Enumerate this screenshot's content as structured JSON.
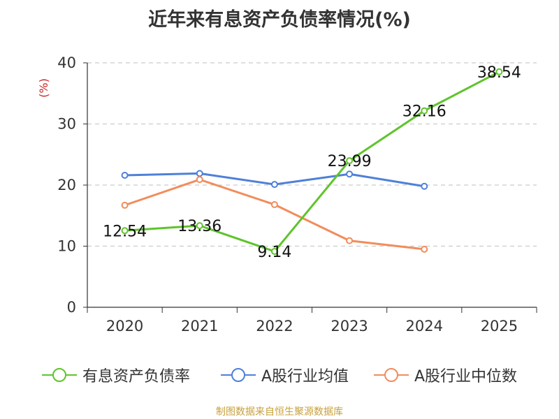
{
  "chart_data": {
    "type": "line",
    "title": "近年来有息资产负债率情况(%)",
    "ylabel": "(%)",
    "xlabel": "",
    "categories": [
      "2020",
      "2021",
      "2022",
      "2023",
      "2024",
      "2025"
    ],
    "ylim": [
      0,
      40
    ],
    "yticks": [
      0,
      10,
      20,
      30,
      40
    ],
    "grid": true,
    "legend_position": "bottom",
    "series": [
      {
        "name": "有息资产负债率",
        "color": "#5fc42b",
        "values": [
          12.54,
          13.36,
          9.14,
          23.99,
          32.16,
          38.54
        ],
        "labels": [
          "12.54",
          "13.36",
          "9.14",
          "23.99",
          "32.16",
          "38.54"
        ]
      },
      {
        "name": "A股行业均值",
        "color": "#4f80d8",
        "values": [
          21.6,
          21.9,
          20.1,
          21.8,
          19.8,
          null
        ]
      },
      {
        "name": "A股行业中位数",
        "color": "#f28c5b",
        "values": [
          16.7,
          20.9,
          16.8,
          10.9,
          9.5,
          null
        ]
      }
    ]
  },
  "source_text": "制图数据来自恒生聚源数据库",
  "colors": {
    "source": "#c8a03c",
    "ylabel": "#cc2222",
    "axis": "#333333",
    "grid": "#cccccc"
  }
}
